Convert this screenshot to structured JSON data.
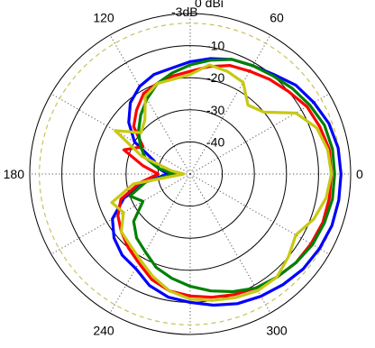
{
  "chart_data": {
    "type": "line",
    "subtype": "polar",
    "unit_label": "0 dBi",
    "reference_ring": {
      "label": "-3dB",
      "value": -3,
      "color": "#c8c25a"
    },
    "radial_range": [
      -50,
      0
    ],
    "radial_ticks": [
      -10,
      -20,
      -30,
      -40
    ],
    "radial_tick_labels": [
      "-10",
      "-20",
      "-30",
      "-40"
    ],
    "angle_labels": [
      {
        "angle": 0,
        "text": "0"
      },
      {
        "angle": 60,
        "text": "60"
      },
      {
        "angle": 120,
        "text": "120"
      },
      {
        "angle": 180,
        "text": "180"
      },
      {
        "angle": 240,
        "text": "240"
      },
      {
        "angle": 300,
        "text": "300"
      }
    ],
    "angle_direction": "counterclockwise",
    "zero_angle": "right",
    "grid": true,
    "spoke_step": 30,
    "series": [
      {
        "color": "#0000ff",
        "points": [
          [
            0,
            -3
          ],
          [
            10,
            -3.2
          ],
          [
            20,
            -4
          ],
          [
            30,
            -5.5
          ],
          [
            40,
            -7
          ],
          [
            50,
            -9.5
          ],
          [
            60,
            -11
          ],
          [
            70,
            -12
          ],
          [
            80,
            -13.5
          ],
          [
            90,
            -15
          ],
          [
            100,
            -16.5
          ],
          [
            110,
            -17
          ],
          [
            120,
            -18.5
          ],
          [
            130,
            -21
          ],
          [
            140,
            -25
          ],
          [
            150,
            -30
          ],
          [
            160,
            -38
          ],
          [
            170,
            -40
          ],
          [
            180,
            -43
          ],
          [
            190,
            -36
          ],
          [
            200,
            -28
          ],
          [
            210,
            -22
          ],
          [
            220,
            -19
          ],
          [
            230,
            -17
          ],
          [
            240,
            -16
          ],
          [
            250,
            -13
          ],
          [
            260,
            -11
          ],
          [
            270,
            -10
          ],
          [
            280,
            -8.5
          ],
          [
            290,
            -7
          ],
          [
            300,
            -6
          ],
          [
            310,
            -5
          ],
          [
            320,
            -4
          ],
          [
            330,
            -3.5
          ],
          [
            340,
            -3
          ],
          [
            350,
            -3
          ]
        ]
      },
      {
        "color": "#ff0000",
        "points": [
          [
            0,
            -6
          ],
          [
            10,
            -6
          ],
          [
            20,
            -7
          ],
          [
            30,
            -8
          ],
          [
            40,
            -10
          ],
          [
            50,
            -11.5
          ],
          [
            60,
            -13
          ],
          [
            70,
            -14
          ],
          [
            80,
            -16
          ],
          [
            90,
            -18
          ],
          [
            100,
            -19
          ],
          [
            110,
            -20
          ],
          [
            120,
            -21
          ],
          [
            130,
            -24
          ],
          [
            140,
            -27
          ],
          [
            150,
            -33
          ],
          [
            160,
            -28
          ],
          [
            170,
            -35
          ],
          [
            180,
            -40
          ],
          [
            190,
            -34
          ],
          [
            200,
            -27
          ],
          [
            210,
            -24
          ],
          [
            220,
            -22
          ],
          [
            230,
            -20
          ],
          [
            240,
            -18
          ],
          [
            250,
            -15
          ],
          [
            260,
            -13
          ],
          [
            270,
            -12
          ],
          [
            280,
            -11
          ],
          [
            290,
            -10
          ],
          [
            300,
            -9
          ],
          [
            310,
            -8
          ],
          [
            320,
            -7
          ],
          [
            330,
            -6.5
          ],
          [
            340,
            -6
          ],
          [
            350,
            -6
          ]
        ]
      },
      {
        "color": "#008000",
        "points": [
          [
            0,
            -5
          ],
          [
            10,
            -5
          ],
          [
            20,
            -5.5
          ],
          [
            30,
            -7
          ],
          [
            40,
            -8.5
          ],
          [
            50,
            -10
          ],
          [
            60,
            -11
          ],
          [
            70,
            -12
          ],
          [
            80,
            -14
          ],
          [
            90,
            -16
          ],
          [
            100,
            -18
          ],
          [
            110,
            -20
          ],
          [
            120,
            -23
          ],
          [
            130,
            -26
          ],
          [
            140,
            -29
          ],
          [
            150,
            -32
          ],
          [
            160,
            -35
          ],
          [
            170,
            -40
          ],
          [
            180,
            -45
          ],
          [
            190,
            -36
          ],
          [
            200,
            -30
          ],
          [
            210,
            -33
          ],
          [
            220,
            -27
          ],
          [
            230,
            -24
          ],
          [
            240,
            -22
          ],
          [
            250,
            -19
          ],
          [
            260,
            -17
          ],
          [
            270,
            -15
          ],
          [
            280,
            -13
          ],
          [
            290,
            -11
          ],
          [
            300,
            -9
          ],
          [
            310,
            -8
          ],
          [
            320,
            -7
          ],
          [
            330,
            -6
          ],
          [
            340,
            -5.5
          ],
          [
            350,
            -5
          ]
        ]
      },
      {
        "color": "#c8c814",
        "points": [
          [
            0,
            -6
          ],
          [
            10,
            -6.5
          ],
          [
            20,
            -8
          ],
          [
            30,
            -12
          ],
          [
            40,
            -20
          ],
          [
            50,
            -22
          ],
          [
            60,
            -17
          ],
          [
            70,
            -16
          ],
          [
            80,
            -15.5
          ],
          [
            90,
            -19
          ],
          [
            100,
            -20
          ],
          [
            110,
            -20
          ],
          [
            120,
            -22
          ],
          [
            130,
            -28
          ],
          [
            140,
            -30
          ],
          [
            150,
            -23
          ],
          [
            160,
            -34
          ],
          [
            170,
            -44
          ],
          [
            180,
            -48
          ],
          [
            190,
            -32
          ],
          [
            200,
            -24
          ],
          [
            210,
            -26
          ],
          [
            220,
            -22
          ],
          [
            230,
            -21
          ],
          [
            240,
            -19
          ],
          [
            250,
            -16
          ],
          [
            260,
            -13
          ],
          [
            270,
            -11
          ],
          [
            280,
            -10
          ],
          [
            290,
            -9
          ],
          [
            300,
            -8
          ],
          [
            310,
            -8
          ],
          [
            320,
            -10
          ],
          [
            330,
            -12
          ],
          [
            340,
            -9
          ],
          [
            350,
            -7
          ]
        ]
      }
    ]
  }
}
